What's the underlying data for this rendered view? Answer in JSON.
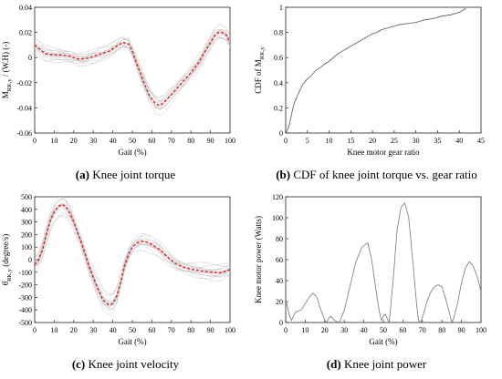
{
  "chart_data": [
    {
      "id": "a",
      "type": "line",
      "caption_letter": "(a)",
      "caption": "Knee joint torque",
      "title": "",
      "xlabel": "Gait (%)",
      "ylabel": "M_RK,y / (W.H) (-)",
      "ylabel_main": "M",
      "ylabel_sub": "RK,y",
      "ylabel_tail": " / (W.H) (-)",
      "xlim": [
        0,
        100
      ],
      "ylim": [
        -0.06,
        0.04
      ],
      "xticks": [
        "0",
        "10",
        "20",
        "30",
        "40",
        "50",
        "60",
        "70",
        "80",
        "90",
        "100"
      ],
      "yticks": [
        "-0.06",
        "-0.04",
        "-0.02",
        "0",
        "0.02",
        "0.04"
      ],
      "background_traces": "multiple gray trials",
      "series": [
        {
          "style": "red-dashed-mean",
          "color": "#e4262b",
          "x": [
            0,
            3,
            6,
            10,
            14,
            18,
            22,
            26,
            30,
            34,
            38,
            42,
            45,
            48,
            50,
            53,
            56,
            59,
            62,
            64,
            66,
            69,
            72,
            76,
            80,
            84,
            88,
            92,
            94,
            96,
            98,
            100
          ],
          "y": [
            0.01,
            0.006,
            0.003,
            0.002,
            0.002,
            0.001,
            -0.001,
            -0.001,
            0.001,
            0.003,
            0.005,
            0.009,
            0.012,
            0.011,
            0.005,
            -0.008,
            -0.02,
            -0.031,
            -0.037,
            -0.038,
            -0.036,
            -0.031,
            -0.026,
            -0.019,
            -0.012,
            -0.004,
            0.007,
            0.017,
            0.02,
            0.02,
            0.018,
            0.012
          ]
        }
      ]
    },
    {
      "id": "b",
      "type": "line",
      "caption_letter": "(b)",
      "caption": "CDF of knee joint torque vs. gear ratio",
      "title": "",
      "xlabel": "Knee motor gear ratio",
      "ylabel": "CDF of M_RK,y",
      "ylabel_main": "CDF of M",
      "ylabel_sub": "RK,y",
      "ylabel_tail": "",
      "xlim": [
        0,
        45
      ],
      "ylim": [
        0,
        1
      ],
      "xticks": [
        "0",
        "5",
        "10",
        "15",
        "20",
        "25",
        "30",
        "35",
        "40",
        "45"
      ],
      "yticks": [
        "0",
        "0.2",
        "0.4",
        "0.6",
        "0.8",
        "1"
      ],
      "series": [
        {
          "style": "gray-solid",
          "color": "#555555",
          "x": [
            0,
            0.5,
            1,
            1.5,
            2,
            3,
            4,
            5,
            6,
            7,
            8,
            9,
            10,
            11,
            12,
            13,
            14,
            15,
            16,
            17,
            18,
            19,
            20,
            21,
            22,
            24,
            26,
            28,
            30,
            32,
            34,
            36,
            38,
            40,
            41.5
          ],
          "y": [
            0,
            0.03,
            0.09,
            0.17,
            0.24,
            0.32,
            0.39,
            0.43,
            0.46,
            0.5,
            0.52,
            0.55,
            0.57,
            0.6,
            0.63,
            0.65,
            0.67,
            0.69,
            0.71,
            0.73,
            0.75,
            0.77,
            0.79,
            0.8,
            0.82,
            0.84,
            0.86,
            0.87,
            0.88,
            0.9,
            0.91,
            0.93,
            0.94,
            0.96,
            0.99
          ]
        }
      ]
    },
    {
      "id": "c",
      "type": "line",
      "caption_letter": "(c)",
      "caption": "Knee joint velocity",
      "title": "",
      "xlabel": "Gait (%)",
      "ylabel": "θ̇_RK,y (degree/s)",
      "ylabel_main": "θ̇",
      "ylabel_sub": "RK,y",
      "ylabel_tail": " (degree/s)",
      "xlim": [
        0,
        100
      ],
      "ylim": [
        -500,
        500
      ],
      "xticks": [
        "0",
        "10",
        "20",
        "30",
        "40",
        "50",
        "60",
        "70",
        "80",
        "90",
        "100"
      ],
      "yticks": [
        "-500",
        "-400",
        "-300",
        "-200",
        "-100",
        "0",
        "100",
        "200",
        "300",
        "400",
        "500"
      ],
      "background_traces": "multiple gray trials",
      "series": [
        {
          "style": "red-dashed-mean",
          "color": "#e4262b",
          "x": [
            0,
            2,
            4,
            6,
            8,
            10,
            12,
            14,
            16,
            18,
            20,
            24,
            28,
            32,
            35,
            38,
            40,
            42,
            44,
            46,
            48,
            50,
            52,
            54,
            56,
            58,
            60,
            64,
            68,
            72,
            76,
            80,
            85,
            90,
            95,
            100
          ],
          "y": [
            -40,
            0,
            80,
            200,
            310,
            380,
            420,
            440,
            420,
            370,
            300,
            130,
            -60,
            -220,
            -320,
            -360,
            -350,
            -290,
            -180,
            -50,
            40,
            100,
            130,
            145,
            145,
            135,
            120,
            80,
            20,
            -30,
            -60,
            -75,
            -90,
            -100,
            -105,
            -80
          ]
        }
      ]
    },
    {
      "id": "d",
      "type": "line",
      "caption_letter": "(d)",
      "caption": "Knee joint power",
      "title": "",
      "xlabel": "Gait (%)",
      "ylabel": "Knee motor power (Watts)",
      "ylabel_main": "Knee motor power (Watts)",
      "ylabel_sub": "",
      "ylabel_tail": "",
      "xlim": [
        0,
        100
      ],
      "ylim": [
        0,
        120
      ],
      "xticks": [
        "0",
        "10",
        "20",
        "30",
        "40",
        "50",
        "60",
        "70",
        "80",
        "90",
        "100"
      ],
      "yticks": [
        "0",
        "20",
        "40",
        "60",
        "80",
        "100",
        "120"
      ],
      "series": [
        {
          "style": "gray-solid",
          "color": "#777777",
          "x": [
            0,
            1,
            2,
            3,
            5,
            8,
            10,
            12,
            14,
            16,
            18,
            20,
            21,
            22,
            23,
            25,
            27,
            28,
            30,
            33,
            36,
            39,
            42,
            44,
            46,
            48,
            49,
            50,
            51,
            52,
            53,
            55,
            57,
            59,
            61,
            63,
            65,
            67,
            68,
            69,
            70,
            72,
            74,
            76,
            78,
            80,
            82,
            84,
            85,
            86,
            88,
            90,
            92,
            94,
            96,
            98,
            100
          ],
          "y": [
            22,
            14,
            6,
            2,
            10,
            12,
            18,
            24,
            28,
            24,
            12,
            2,
            0,
            4,
            6,
            2,
            0,
            2,
            12,
            35,
            58,
            72,
            76,
            60,
            34,
            10,
            2,
            6,
            8,
            4,
            0,
            40,
            88,
            110,
            114,
            100,
            60,
            18,
            2,
            0,
            5,
            18,
            28,
            34,
            36,
            34,
            22,
            8,
            0,
            4,
            18,
            38,
            52,
            58,
            54,
            44,
            30
          ]
        }
      ]
    }
  ]
}
